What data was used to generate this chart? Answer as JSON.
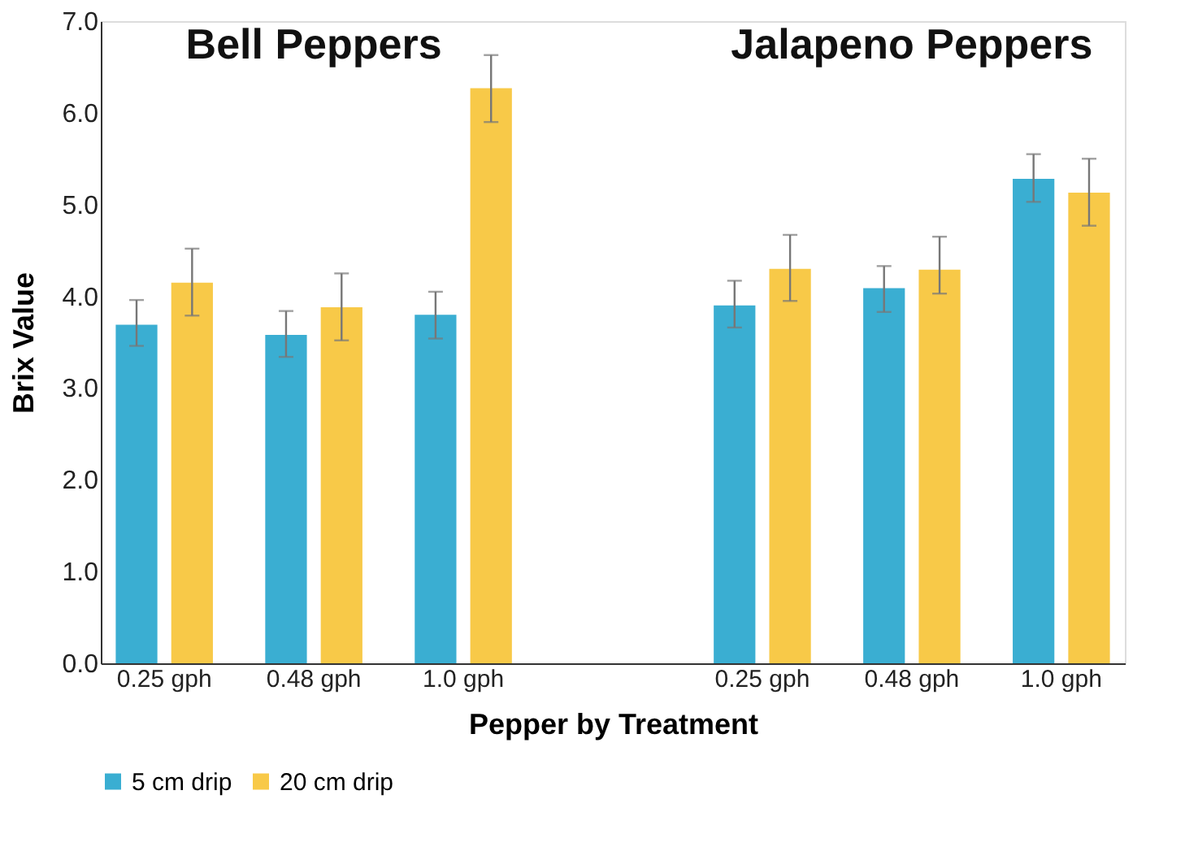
{
  "chart_data": {
    "type": "bar",
    "categories": [
      "0.25 gph",
      "0.48 gph",
      "1.0 gph",
      null,
      "0.25 gph",
      "0.48 gph",
      "1.0 gph"
    ],
    "series": [
      {
        "name": "5 cm drip",
        "color": "#3aaed2",
        "values": [
          3.69,
          3.58,
          3.8,
          null,
          3.9,
          4.09,
          5.28
        ],
        "errors": [
          [
            3.46,
            3.96
          ],
          [
            3.34,
            3.84
          ],
          [
            3.54,
            4.05
          ],
          null,
          [
            3.66,
            4.17
          ],
          [
            3.83,
            4.33
          ],
          [
            5.03,
            5.55
          ]
        ]
      },
      {
        "name": "20 cm drip",
        "color": "#f8c948",
        "values": [
          4.15,
          3.88,
          6.27,
          null,
          4.3,
          4.29,
          5.13
        ],
        "errors": [
          [
            3.79,
            4.52
          ],
          [
            3.52,
            4.25
          ],
          [
            5.9,
            6.63
          ],
          null,
          [
            3.95,
            4.67
          ],
          [
            4.03,
            4.65
          ],
          [
            4.77,
            5.5
          ]
        ]
      }
    ],
    "xlabel": "Pepper by Treatment",
    "ylabel": "Brix Value",
    "ylim": [
      0,
      7
    ],
    "yticks": [
      {
        "value": 0,
        "label": "0.0"
      },
      {
        "value": 1,
        "label": "1.0"
      },
      {
        "value": 2,
        "label": "2.0"
      },
      {
        "value": 3,
        "label": "3.0"
      },
      {
        "value": 4,
        "label": "4.0"
      },
      {
        "value": 5,
        "label": "5.0"
      },
      {
        "value": 6,
        "label": "6.0"
      },
      {
        "value": 7,
        "label": "7.0"
      }
    ],
    "annotations": [
      "Bell Peppers",
      "Jalapeno Peppers"
    ],
    "grid": false,
    "legend": "bottom"
  }
}
